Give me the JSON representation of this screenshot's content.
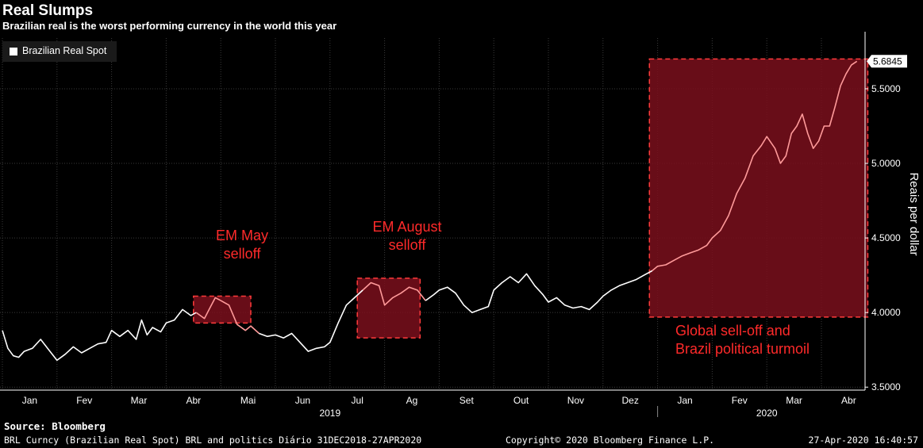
{
  "title": "Real Slumps",
  "subtitle": "Brazilian real is the worst performing currency in the world this year",
  "source": "Source: Bloomberg",
  "footer": {
    "left": "BRL Curncy (Brazilian Real Spot) BRL and politics  Diário 31DEC2018-27APR2020",
    "center": "Copyright© 2020 Bloomberg Finance L.P.",
    "right": "27-Apr-2020 16:40:57"
  },
  "colors": {
    "line_normal": "#ffffff",
    "line_highlight": "#ff9a9a",
    "box_fill": "#7a0f1c",
    "box_border": "#ff3b3b",
    "annotation": "#ff2a2a",
    "grid": "#3a3a3a"
  },
  "chart_data": {
    "type": "line",
    "ylabel": "Reais per dollar",
    "ylim": [
      3.48,
      5.84
    ],
    "yticks": [
      "3.5000",
      "4.0000",
      "4.5000",
      "5.0000",
      "5.5000"
    ],
    "last_value_label": "5.6845",
    "legend": [
      "Brazilian Real Spot"
    ],
    "months": [
      "Jan",
      "Fev",
      "Mar",
      "Abr",
      "Mai",
      "Jun",
      "Jul",
      "Ag",
      "Set",
      "Out",
      "Nov",
      "Dez",
      "Jan",
      "Fev",
      "Mar",
      "Abr"
    ],
    "years": [
      "2019",
      "2020"
    ],
    "series": [
      {
        "name": "Brazilian Real Spot",
        "x_month_index": [
          0.0,
          0.1,
          0.2,
          0.3,
          0.4,
          0.55,
          0.7,
          0.85,
          1.0,
          1.15,
          1.3,
          1.45,
          1.6,
          1.75,
          1.9,
          2.0,
          2.15,
          2.3,
          2.45,
          2.55,
          2.65,
          2.75,
          2.9,
          3.0,
          3.15,
          3.3,
          3.45,
          3.55,
          3.7,
          3.8,
          3.9,
          4.0,
          4.15,
          4.3,
          4.45,
          4.55,
          4.7,
          4.85,
          5.0,
          5.15,
          5.3,
          5.45,
          5.6,
          5.75,
          5.9,
          6.0,
          6.15,
          6.3,
          6.45,
          6.6,
          6.75,
          6.9,
          7.0,
          7.15,
          7.3,
          7.45,
          7.6,
          7.75,
          7.9,
          8.0,
          8.15,
          8.3,
          8.45,
          8.6,
          8.75,
          8.9,
          9.0,
          9.15,
          9.3,
          9.45,
          9.6,
          9.75,
          9.9,
          10.0,
          10.15,
          10.3,
          10.45,
          10.6,
          10.75,
          10.9,
          11.0,
          11.15,
          11.3,
          11.45,
          11.6,
          11.75,
          11.9,
          12.0,
          12.15,
          12.3,
          12.45,
          12.6,
          12.75,
          12.9,
          13.0,
          13.15,
          13.3,
          13.45,
          13.6,
          13.75,
          13.9,
          14.0,
          14.15,
          14.25,
          14.35,
          14.45,
          14.55,
          14.65,
          14.75,
          14.85,
          14.95,
          15.05,
          15.15,
          15.25,
          15.35,
          15.45,
          15.55,
          15.65
        ],
        "values": [
          3.88,
          3.76,
          3.71,
          3.7,
          3.74,
          3.76,
          3.82,
          3.75,
          3.68,
          3.72,
          3.77,
          3.73,
          3.76,
          3.79,
          3.8,
          3.88,
          3.84,
          3.88,
          3.82,
          3.95,
          3.85,
          3.9,
          3.87,
          3.93,
          3.95,
          4.02,
          3.98,
          4.0,
          3.96,
          4.03,
          4.1,
          4.08,
          4.05,
          3.92,
          3.88,
          3.91,
          3.86,
          3.84,
          3.85,
          3.83,
          3.86,
          3.8,
          3.74,
          3.76,
          3.77,
          3.8,
          3.93,
          4.05,
          4.1,
          4.15,
          4.2,
          4.18,
          4.05,
          4.1,
          4.13,
          4.17,
          4.15,
          4.08,
          4.12,
          4.15,
          4.17,
          4.13,
          4.05,
          4.0,
          4.02,
          4.04,
          4.15,
          4.2,
          4.24,
          4.2,
          4.26,
          4.18,
          4.12,
          4.07,
          4.1,
          4.05,
          4.03,
          4.04,
          4.02,
          4.07,
          4.11,
          4.15,
          4.18,
          4.2,
          4.22,
          4.25,
          4.28,
          4.31,
          4.32,
          4.35,
          4.38,
          4.4,
          4.42,
          4.45,
          4.5,
          4.55,
          4.65,
          4.8,
          4.9,
          5.05,
          5.12,
          5.18,
          5.1,
          5.0,
          5.05,
          5.2,
          5.25,
          5.33,
          5.2,
          5.1,
          5.15,
          5.25,
          5.25,
          5.38,
          5.52,
          5.6,
          5.66,
          5.6845
        ]
      }
    ],
    "highlight_boxes": [
      {
        "from_month": 3.5,
        "to_month": 4.55,
        "y_top": 4.11,
        "y_bottom": 3.93,
        "label_lines": [
          "EM May",
          "selloff"
        ]
      },
      {
        "from_month": 6.5,
        "to_month": 7.65,
        "y_top": 4.23,
        "y_bottom": 3.83,
        "label_lines": [
          "EM August",
          "selloff"
        ]
      },
      {
        "from_month": 11.85,
        "to_month": 15.85,
        "y_top": 5.7,
        "y_bottom": 3.97,
        "label_lines": [
          "Global sell-off and",
          "Brazil political turmoil"
        ]
      }
    ]
  }
}
